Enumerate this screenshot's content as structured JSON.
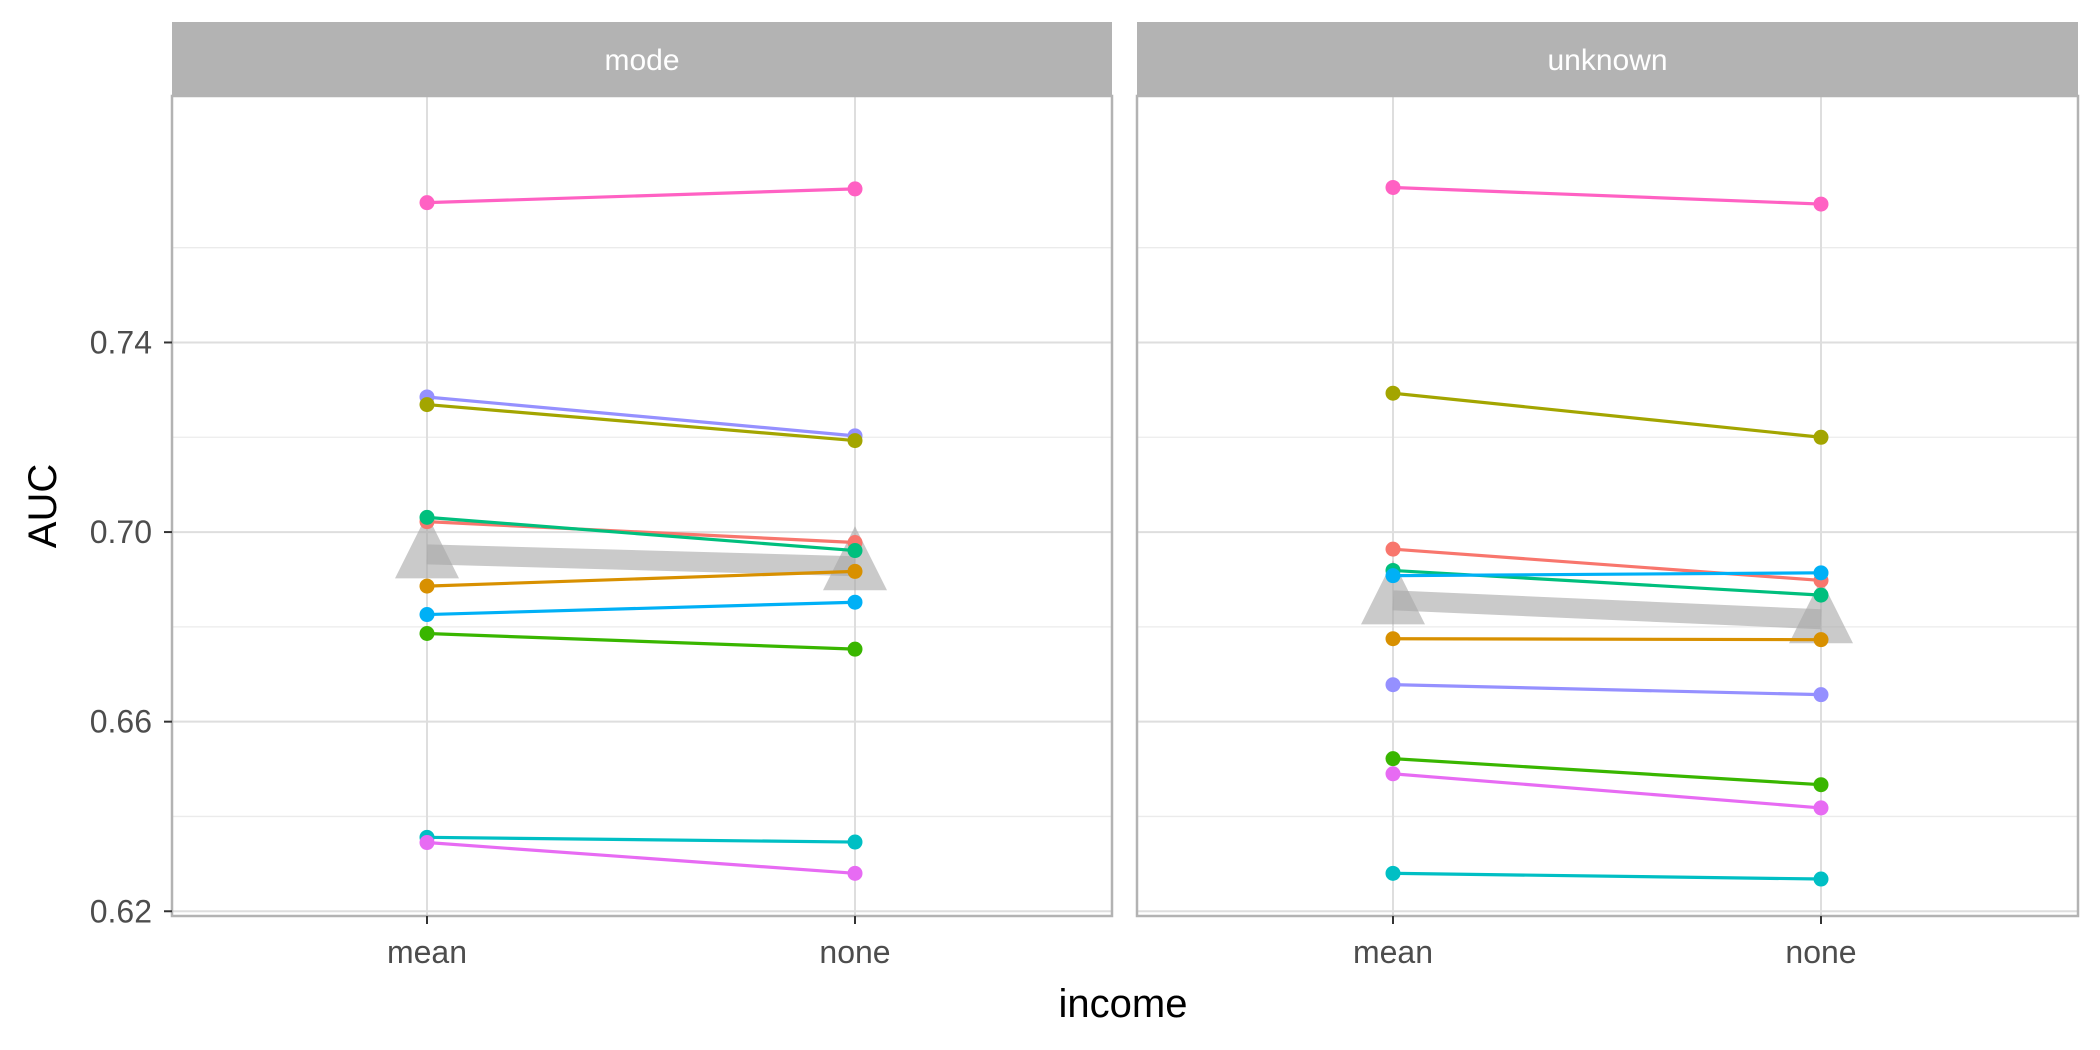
{
  "chart_data": {
    "type": "line",
    "xlabel": "income",
    "ylabel": "AUC",
    "ylim": [
      0.619,
      0.792
    ],
    "y_ticks": [
      "0.62",
      "0.66",
      "0.70",
      "0.74"
    ],
    "y_tick_values": [
      0.62,
      0.66,
      0.7,
      0.74
    ],
    "y_minor_values": [
      0.64,
      0.68,
      0.72,
      0.76
    ],
    "categories": [
      "mean",
      "none"
    ],
    "grid": true,
    "legend": "none",
    "summary_color": "#a6a6a6",
    "panels": [
      {
        "title": "mode",
        "series": [
          {
            "color": "#FF61C3",
            "values": [
              0.7695,
              0.7724
            ]
          },
          {
            "color": "#9590FF",
            "values": [
              0.7285,
              0.7203
            ]
          },
          {
            "color": "#A3A500",
            "values": [
              0.7269,
              0.7193
            ]
          },
          {
            "color": "#F8766D",
            "values": [
              0.7022,
              0.6978
            ]
          },
          {
            "color": "#00BF7D",
            "values": [
              0.7031,
              0.6961
            ]
          },
          {
            "color": "#D89000",
            "values": [
              0.6886,
              0.6917
            ]
          },
          {
            "color": "#00B0F6",
            "values": [
              0.6826,
              0.6852
            ]
          },
          {
            "color": "#39B600",
            "values": [
              0.6786,
              0.6753
            ]
          },
          {
            "color": "#00BFC4",
            "values": [
              0.6356,
              0.6346
            ]
          },
          {
            "color": "#E76BF3",
            "values": [
              0.6345,
              0.628
            ]
          }
        ],
        "summary": [
          0.6953,
          0.6928
        ]
      },
      {
        "title": "unknown",
        "series": [
          {
            "color": "#FF61C3",
            "values": [
              0.7727,
              0.7692
            ]
          },
          {
            "color": "#A3A500",
            "values": [
              0.7293,
              0.72
            ]
          },
          {
            "color": "#F8766D",
            "values": [
              0.6964,
              0.6898
            ]
          },
          {
            "color": "#00BF7D",
            "values": [
              0.6919,
              0.6867
            ]
          },
          {
            "color": "#00B0F6",
            "values": [
              0.6908,
              0.6914
            ]
          },
          {
            "color": "#D89000",
            "values": [
              0.6775,
              0.6773
            ]
          },
          {
            "color": "#9590FF",
            "values": [
              0.6678,
              0.6657
            ]
          },
          {
            "color": "#39B600",
            "values": [
              0.6522,
              0.6467
            ]
          },
          {
            "color": "#E76BF3",
            "values": [
              0.649,
              0.6418
            ]
          },
          {
            "color": "#00BFC4",
            "values": [
              0.628,
              0.6268
            ]
          }
        ],
        "summary": [
          0.6856,
          0.6816
        ]
      }
    ]
  }
}
